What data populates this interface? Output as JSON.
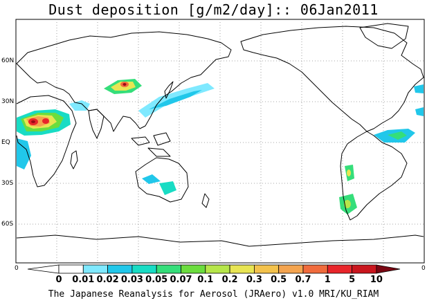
{
  "title": "Dust deposition [g/m2/day]:: 06Jan2011",
  "lat_labels": [
    "60N",
    "30N",
    "EQ",
    "30S",
    "60S"
  ],
  "edge_labels": {
    "left": "0",
    "right": "0"
  },
  "legend": {
    "levels": [
      "0",
      "0.01",
      "0.02",
      "0.03",
      "0.05",
      "0.07",
      "0.1",
      "0.2",
      "0.3",
      "0.5",
      "0.7",
      "1",
      "5",
      "10"
    ],
    "colors": [
      "#ffffff",
      "#7fe9ff",
      "#21c7ea",
      "#18dcc4",
      "#35de7a",
      "#6bdd3e",
      "#b6e64a",
      "#e8e553",
      "#f3c24c",
      "#f4a44f",
      "#f06b3c",
      "#e8252a",
      "#c9151d",
      "#9a0a16",
      "#7a0612"
    ]
  },
  "footer": "The Japanese Reanalysis for Aerosol (JRAero) v1.0 MRI/KU_RIAM"
}
